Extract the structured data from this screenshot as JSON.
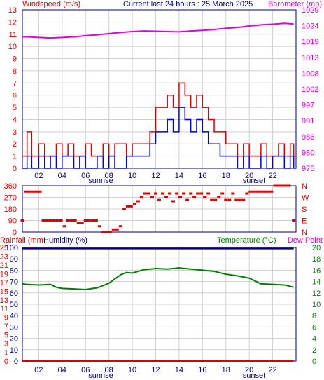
{
  "chart_data": [
    {
      "type": "line",
      "panel": "wind-barometer",
      "title": "Current last 24 hours : 25 March 2025",
      "left_label": "Windspeed (m/s)",
      "right_label": "Barometer (mb)",
      "x_ticks": [
        "02",
        "04",
        "06",
        "08",
        "10",
        "12",
        "14",
        "16",
        "18",
        "20",
        "22"
      ],
      "x_markers": [
        "sunrise",
        "sunset"
      ],
      "left_ticks": [
        "0",
        "1",
        "2",
        "3",
        "4",
        "5",
        "6",
        "7",
        "8",
        "9",
        "10",
        "11",
        "12",
        "13"
      ],
      "right_ticks": [
        "975",
        "980",
        "986",
        "991",
        "997",
        "1002",
        "1008",
        "1013",
        "1019",
        "1024",
        "1029"
      ],
      "ylim_left": [
        0,
        13
      ],
      "ylim_right": [
        975,
        1029
      ],
      "xlim": [
        0.6,
        24
      ],
      "grid": true,
      "colors": {
        "wind_gust": "#e00000",
        "wind_avg": "#0000e0",
        "barometer": "#e000e0"
      },
      "series": [
        {
          "key": "barometer",
          "axis": "right",
          "x": [
            0.6,
            2,
            3,
            4,
            5,
            6,
            7,
            8,
            9,
            10,
            11,
            12,
            13,
            14,
            15,
            16,
            17,
            18,
            19,
            20,
            21,
            22,
            23,
            23.8
          ],
          "values": [
            1019.9,
            1019.6,
            1019.4,
            1019.6,
            1019.8,
            1020.2,
            1020.5,
            1020.9,
            1021.3,
            1021.6,
            1021.8,
            1021.7,
            1021.6,
            1021.5,
            1021.8,
            1022.0,
            1022.3,
            1022.7,
            1023.0,
            1023.5,
            1023.9,
            1024.1,
            1024.4,
            1024.2
          ]
        },
        {
          "key": "wind_gust",
          "axis": "left",
          "x": [
            0.6,
            1,
            1.4,
            2,
            2.5,
            3,
            3.5,
            4,
            4.5,
            5,
            5.5,
            6,
            6.5,
            7,
            7.5,
            8,
            8.5,
            9,
            9.5,
            10,
            10.5,
            11,
            11.5,
            12,
            12.5,
            13,
            13.5,
            14,
            14.5,
            15,
            15.5,
            16,
            16.5,
            17,
            17.5,
            18,
            18.5,
            19,
            19.5,
            20,
            20.5,
            21,
            21.5,
            22,
            22.5,
            23,
            23.5,
            23.8
          ],
          "values": [
            1,
            3,
            1,
            2,
            1,
            1,
            2,
            1,
            2,
            1,
            1,
            2,
            1,
            1,
            2,
            1,
            2,
            2,
            1,
            2,
            2,
            2,
            3,
            5,
            5,
            6,
            5,
            7,
            6,
            5,
            6,
            5,
            4,
            3,
            3,
            2,
            2,
            1,
            2,
            1,
            1,
            2,
            1,
            1,
            2,
            1,
            2,
            1
          ]
        },
        {
          "key": "wind_avg",
          "axis": "left",
          "x": [
            0.6,
            1,
            1.4,
            2,
            2.5,
            3,
            3.5,
            4,
            4.5,
            5,
            5.5,
            6,
            6.5,
            7,
            7.5,
            8,
            8.5,
            9,
            9.5,
            10,
            10.5,
            11,
            11.5,
            12,
            12.5,
            13,
            13.5,
            14,
            14.5,
            15,
            15.5,
            16,
            16.5,
            17,
            17.5,
            18,
            18.5,
            19,
            19.5,
            20,
            20.5,
            21,
            21.5,
            22,
            22.5,
            23,
            23.5,
            23.8
          ],
          "values": [
            0,
            1,
            0,
            1,
            0,
            1,
            0,
            1,
            1,
            0,
            1,
            0,
            0,
            1,
            0,
            1,
            0,
            0,
            1,
            1,
            1,
            1,
            2,
            3,
            3,
            4,
            3,
            5,
            4,
            3,
            4,
            3,
            2,
            2,
            1,
            1,
            1,
            0,
            1,
            0,
            0,
            1,
            0,
            1,
            1,
            0,
            1,
            0
          ]
        }
      ]
    },
    {
      "type": "scatter",
      "panel": "wind-direction",
      "left_ticks": [
        "0",
        "90",
        "180",
        "270",
        "360"
      ],
      "right_ticks": [
        "N",
        "E",
        "S",
        "W",
        "N"
      ],
      "ylim": [
        0,
        360
      ],
      "xlim": [
        0.6,
        24
      ],
      "colors": {
        "direction": "#e00000"
      },
      "series": [
        {
          "key": "direction",
          "x": [
            0.6,
            0.9,
            1.2,
            1.5,
            1.8,
            2.1,
            2.4,
            2.7,
            3.0,
            3.3,
            3.6,
            3.9,
            4.2,
            4.5,
            4.8,
            5.1,
            5.4,
            5.7,
            6.0,
            6.3,
            6.6,
            6.9,
            7.2,
            7.5,
            7.8,
            8.1,
            8.4,
            8.7,
            9.0,
            9.3,
            9.6,
            9.9,
            10.2,
            10.5,
            10.8,
            11.1,
            11.4,
            11.7,
            12.0,
            12.3,
            12.6,
            12.9,
            13.2,
            13.5,
            13.8,
            14.1,
            14.4,
            14.7,
            15.0,
            15.3,
            15.6,
            15.9,
            16.2,
            16.5,
            16.8,
            17.1,
            17.4,
            17.7,
            18.0,
            18.3,
            18.6,
            18.9,
            19.2,
            19.5,
            19.8,
            20.1,
            20.4,
            20.7,
            21.0,
            21.3,
            21.6,
            21.9,
            22.2,
            22.5,
            22.8,
            23.1,
            23.4,
            23.8
          ],
          "values": [
            90,
            315,
            315,
            315,
            315,
            315,
            90,
            90,
            90,
            90,
            90,
            90,
            45,
            90,
            90,
            90,
            70,
            70,
            90,
            90,
            90,
            90,
            45,
            0,
            0,
            0,
            20,
            20,
            45,
            180,
            200,
            200,
            220,
            240,
            270,
            300,
            300,
            270,
            300,
            250,
            300,
            270,
            300,
            240,
            300,
            270,
            300,
            250,
            300,
            270,
            300,
            300,
            270,
            300,
            250,
            250,
            270,
            300,
            250,
            250,
            300,
            250,
            250,
            250,
            300,
            315,
            315,
            315,
            315,
            315,
            315,
            315,
            360,
            360,
            360,
            360,
            360,
            90
          ]
        }
      ]
    },
    {
      "type": "line",
      "panel": "rain-humidity-temperature",
      "labels": [
        "Rainfall (mm",
        "Humidity (%)",
        "Temperature (°C)",
        "Dew Point"
      ],
      "left_ticks_rain": [
        "0",
        "1",
        "3",
        "5",
        "7",
        "9",
        "11",
        "13",
        "15",
        "17",
        "19",
        "21",
        "23",
        "25"
      ],
      "left_ticks_humidity": [
        "0",
        "10",
        "20",
        "30",
        "40",
        "50",
        "60",
        "70",
        "80",
        "90",
        "100"
      ],
      "right_ticks": [
        "0",
        "2",
        "4",
        "6",
        "8",
        "10",
        "12",
        "14",
        "16",
        "18",
        "20"
      ],
      "x_ticks": [
        "02",
        "04",
        "06",
        "08",
        "10",
        "12",
        "14",
        "16",
        "18",
        "20",
        "22"
      ],
      "x_markers": [
        "sunrise",
        "sunset"
      ],
      "ylim_humidity": [
        0,
        100
      ],
      "ylim_temperature": [
        0,
        20
      ],
      "xlim": [
        0.6,
        24
      ],
      "colors": {
        "rainfall": "#e00000",
        "humidity": "#000080",
        "temperature": "#008000",
        "dew_point": "#e000e0"
      },
      "series": [
        {
          "key": "temperature",
          "axis": "right",
          "x": [
            0.6,
            1,
            2,
            3,
            3.5,
            4,
            5,
            6,
            7,
            8,
            9,
            9.5,
            10,
            11,
            12,
            13,
            14,
            15,
            16,
            17,
            18,
            19,
            20,
            21,
            22,
            23,
            23.8
          ],
          "values": [
            13.6,
            13.5,
            13.4,
            13.5,
            13.0,
            12.8,
            12.7,
            12.6,
            12.9,
            13.7,
            15.2,
            15.6,
            15.5,
            16.1,
            16.3,
            16.2,
            16.4,
            16.2,
            16.0,
            15.8,
            15.3,
            15.0,
            14.6,
            13.6,
            13.5,
            13.4,
            13.0
          ]
        },
        {
          "key": "humidity",
          "axis": "left",
          "x": [
            0.6,
            23.8
          ],
          "values": [
            99,
            99
          ]
        },
        {
          "key": "rainfall",
          "axis": "left",
          "x": [
            0.6,
            23.8
          ],
          "values": [
            0,
            0
          ]
        }
      ]
    }
  ]
}
